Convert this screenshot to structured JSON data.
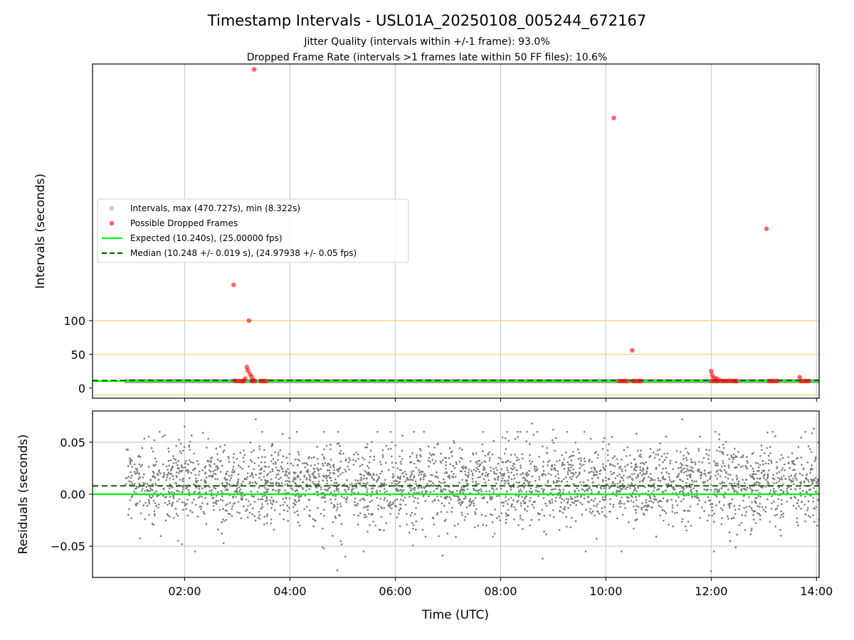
{
  "figure": {
    "title": "Timestamp Intervals - USL01A_20250108_005244_672167",
    "subtitle_line1": "Jitter Quality (intervals within +/-1 frame): 93.0%",
    "subtitle_line2": "Dropped Frame Rate (intervals >1 frames late within 50 FF files): 10.6%"
  },
  "colors": {
    "interval_points": "#a9a9a9",
    "dropped_frames": "#ff0000",
    "expected_line": "#00ff00",
    "median_line": "#006400",
    "reference_lines": "#ffd27a",
    "residual_points": "#7a7a7a",
    "grid": "#cccccc"
  },
  "chart_data": [
    {
      "type": "scatter",
      "panel": "intervals",
      "ylabel": "Intervals (seconds)",
      "xlabel": "",
      "x_unit": "hours UTC",
      "xlim": [
        0.25,
        14.05
      ],
      "ylim": [
        -15,
        480
      ],
      "yticks": [
        {
          "value": 0,
          "label": "0"
        },
        {
          "value": 50,
          "label": "50"
        },
        {
          "value": 100,
          "label": "100"
        }
      ],
      "xticks": [
        {
          "value": 2,
          "label": "02:00"
        },
        {
          "value": 4,
          "label": "04:00"
        },
        {
          "value": 6,
          "label": "06:00"
        },
        {
          "value": 8,
          "label": "08:00"
        },
        {
          "value": 10,
          "label": "10:00"
        },
        {
          "value": 12,
          "label": "12:00"
        },
        {
          "value": 14,
          "label": "14:00"
        }
      ],
      "reference_lines_y": [
        -10,
        50,
        100
      ],
      "expected_value": 10.24,
      "median_value": 10.248,
      "intervals_range": {
        "x_start": 0.88,
        "x_end": 14.05,
        "y": 10.24
      },
      "dropped_frames": [
        [
          2.93,
          153
        ],
        [
          3.22,
          100
        ],
        [
          3.32,
          472
        ],
        [
          10.15,
          400
        ],
        [
          10.5,
          56
        ],
        [
          13.05,
          236
        ],
        [
          3.18,
          31
        ],
        [
          3.2,
          26
        ],
        [
          3.24,
          21
        ],
        [
          3.27,
          17
        ],
        [
          3.15,
          14
        ],
        [
          3.3,
          12
        ],
        [
          2.95,
          11
        ],
        [
          3.0,
          10.5
        ],
        [
          3.05,
          10.5
        ],
        [
          3.1,
          10.5
        ],
        [
          3.12,
          10.5
        ],
        [
          3.28,
          10.5
        ],
        [
          3.33,
          10.5
        ],
        [
          3.45,
          10.5
        ],
        [
          3.5,
          10.5
        ],
        [
          3.55,
          10.5
        ],
        [
          10.25,
          10.5
        ],
        [
          10.3,
          10.5
        ],
        [
          10.35,
          10.5
        ],
        [
          10.4,
          10.5
        ],
        [
          10.52,
          10.5
        ],
        [
          10.57,
          10.5
        ],
        [
          10.62,
          10.5
        ],
        [
          10.66,
          10.5
        ],
        [
          12.0,
          25
        ],
        [
          12.02,
          19
        ],
        [
          12.05,
          15
        ],
        [
          12.1,
          14
        ],
        [
          12.15,
          12
        ],
        [
          12.01,
          10.5
        ],
        [
          12.07,
          10.5
        ],
        [
          12.12,
          10.5
        ],
        [
          12.2,
          10.5
        ],
        [
          12.25,
          10.5
        ],
        [
          12.3,
          10.5
        ],
        [
          12.35,
          11
        ],
        [
          12.4,
          10.5
        ],
        [
          12.45,
          10.5
        ],
        [
          12.48,
          10.5
        ],
        [
          13.1,
          10.5
        ],
        [
          13.15,
          10.5
        ],
        [
          13.2,
          10.5
        ],
        [
          13.25,
          10.5
        ],
        [
          13.68,
          16
        ],
        [
          13.7,
          10.5
        ],
        [
          13.75,
          10.5
        ],
        [
          13.8,
          10.5
        ],
        [
          13.85,
          10.5
        ]
      ],
      "legend": {
        "position": "center-left",
        "entries": [
          {
            "kind": "point",
            "color_key": "interval_points",
            "label": "Intervals, max (470.727s), min (8.322s)"
          },
          {
            "kind": "point",
            "color_key": "dropped_frames",
            "label": "Possible Dropped Frames"
          },
          {
            "kind": "line",
            "color_key": "expected_line",
            "label": "Expected (10.240s), (25.00000 fps)"
          },
          {
            "kind": "dashed",
            "color_key": "median_line",
            "label": "Median (10.248 +/- 0.019 s), (24.97938 +/- 0.05 fps)"
          }
        ]
      }
    },
    {
      "type": "scatter",
      "panel": "residuals",
      "ylabel": "Residuals (seconds)",
      "xlabel": "Time (UTC)",
      "x_unit": "hours UTC",
      "xlim": [
        0.25,
        14.05
      ],
      "ylim": [
        -0.08,
        0.08
      ],
      "yticks": [
        {
          "value": -0.05,
          "label": "−0.05"
        },
        {
          "value": 0.0,
          "label": "0.00"
        },
        {
          "value": 0.05,
          "label": "0.05"
        }
      ],
      "xticks": [
        {
          "value": 2,
          "label": "02:00"
        },
        {
          "value": 4,
          "label": "04:00"
        },
        {
          "value": 6,
          "label": "06:00"
        },
        {
          "value": 8,
          "label": "08:00"
        },
        {
          "value": 10,
          "label": "10:00"
        },
        {
          "value": 12,
          "label": "12:00"
        },
        {
          "value": 14,
          "label": "14:00"
        }
      ],
      "expected_residual": 0.0,
      "median_residual": 0.008,
      "residual_distribution": {
        "x_start": 0.88,
        "x_end": 14.05,
        "mean": 0.01,
        "std": 0.019,
        "count": 3200
      },
      "outlier_points": [
        [
          2.0,
          0.065
        ],
        [
          3.35,
          0.072
        ],
        [
          4.9,
          -0.073
        ],
        [
          5.05,
          -0.06
        ],
        [
          11.45,
          0.072
        ],
        [
          12.0,
          -0.074
        ],
        [
          12.05,
          -0.055
        ],
        [
          13.95,
          0.063
        ],
        [
          8.8,
          -0.062
        ],
        [
          6.9,
          -0.059
        ],
        [
          2.2,
          -0.055
        ],
        [
          4.65,
          -0.052
        ],
        [
          1.95,
          -0.048
        ],
        [
          8.6,
          0.068
        ],
        [
          9.0,
          0.062
        ]
      ]
    }
  ]
}
